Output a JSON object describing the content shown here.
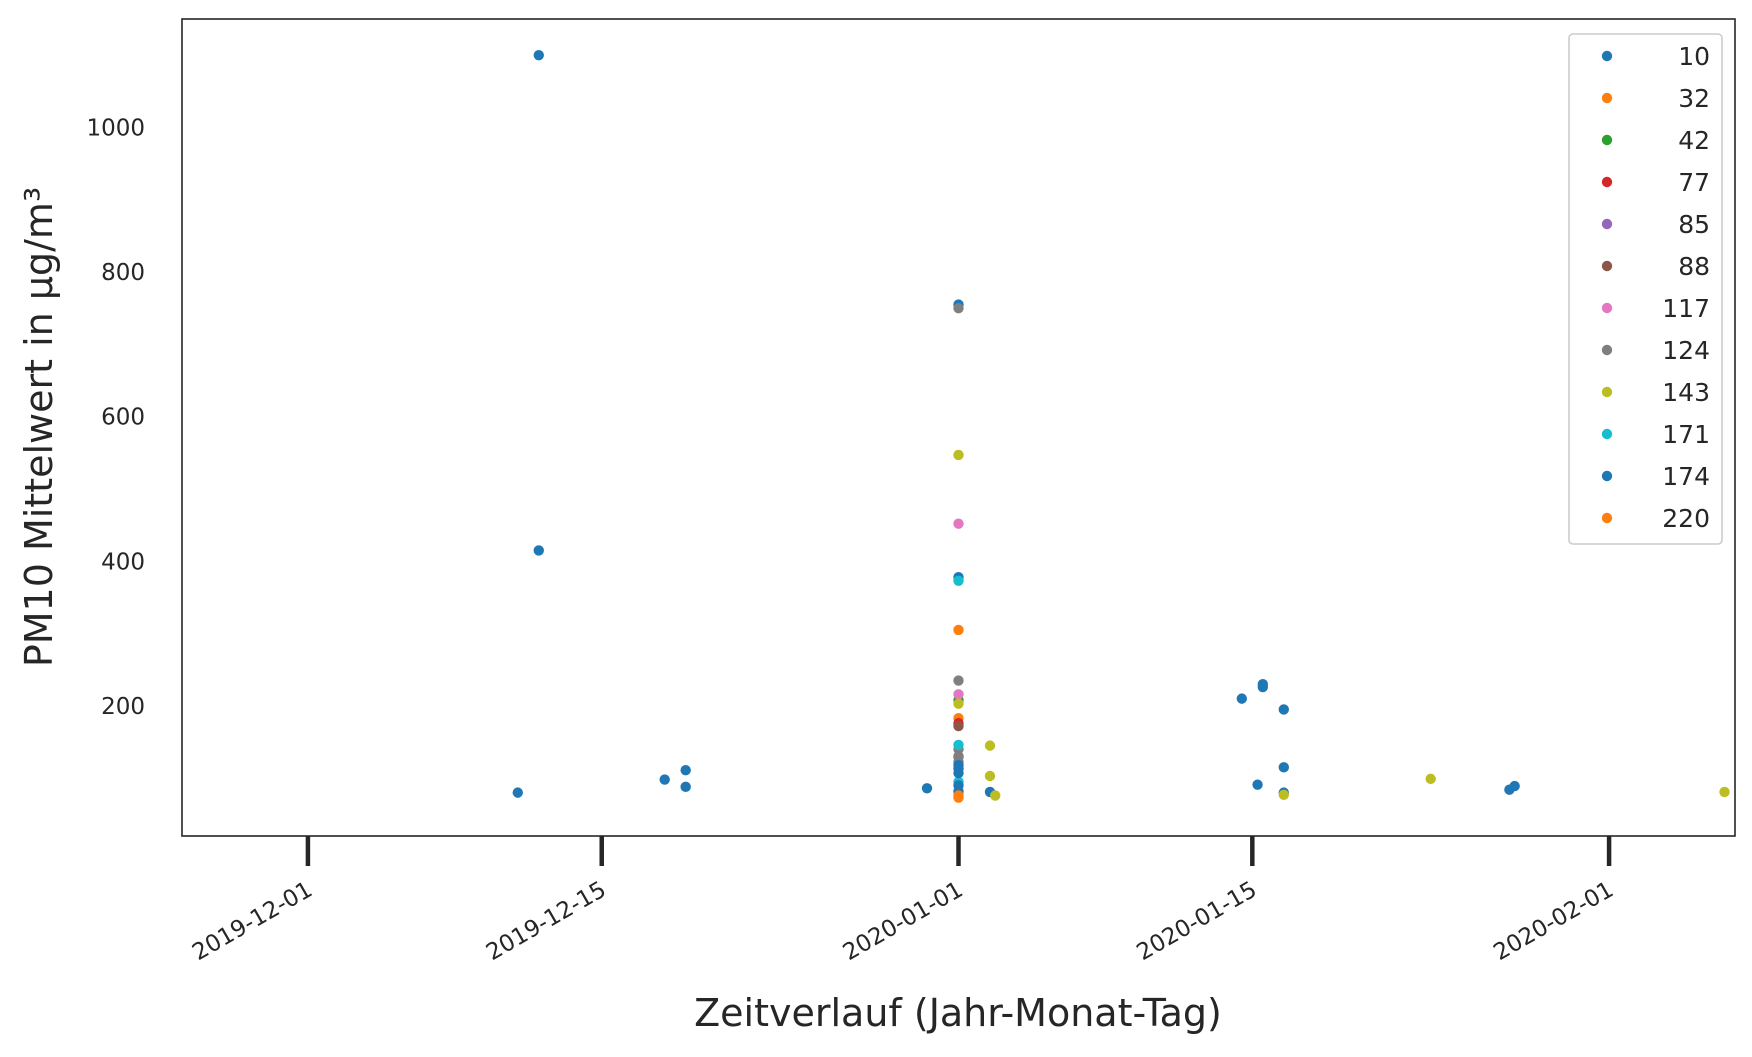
{
  "chart_data": {
    "type": "scatter",
    "xlabel": "Zeitverlauf (Jahr-Monat-Tag)",
    "ylabel": "PM10 Mittelwert in µg/m³",
    "xlim": [
      "2019-11-25",
      "2020-02-07"
    ],
    "ylim": [
      20,
      1150
    ],
    "x_ticks": [
      "2019-12-01",
      "2019-12-15",
      "2020-01-01",
      "2020-01-15",
      "2020-02-01"
    ],
    "y_ticks": [
      200,
      400,
      600,
      800,
      1000
    ],
    "grid": false,
    "legend_position": "top-right",
    "series": [
      {
        "name": "10",
        "color": "#1f77b4",
        "points": [
          {
            "x": "2019-12-11T00:00",
            "y": 80
          },
          {
            "x": "2019-12-12T00:00",
            "y": 1100
          },
          {
            "x": "2019-12-12T00:00",
            "y": 415
          },
          {
            "x": "2019-12-18T00:00",
            "y": 98
          },
          {
            "x": "2019-12-19T00:00",
            "y": 111
          },
          {
            "x": "2019-12-19T00:00",
            "y": 88
          },
          {
            "x": "2019-12-30T12:00",
            "y": 86
          },
          {
            "x": "2020-01-01T00:00",
            "y": 755
          },
          {
            "x": "2020-01-01T00:00",
            "y": 378
          },
          {
            "x": "2020-01-02T12:00",
            "y": 81
          },
          {
            "x": "2020-01-14T12:00",
            "y": 210
          },
          {
            "x": "2020-01-15T06:00",
            "y": 91
          },
          {
            "x": "2020-01-15T12:00",
            "y": 230
          },
          {
            "x": "2020-01-15T12:00",
            "y": 226
          },
          {
            "x": "2020-01-16T12:00",
            "y": 195
          },
          {
            "x": "2020-01-16T12:00",
            "y": 115
          },
          {
            "x": "2020-01-16T12:00",
            "y": 80
          },
          {
            "x": "2020-01-27T06:00",
            "y": 84
          },
          {
            "x": "2020-01-27T12:00",
            "y": 89
          }
        ]
      },
      {
        "name": "32",
        "color": "#ff7f0e",
        "points": [
          {
            "x": "2020-01-01T00:00",
            "y": 305
          },
          {
            "x": "2020-01-01T00:00",
            "y": 183
          }
        ]
      },
      {
        "name": "42",
        "color": "#2ca02c",
        "points": [
          {
            "x": "2020-01-01T00:00",
            "y": 208
          }
        ]
      },
      {
        "name": "77",
        "color": "#d62728",
        "points": [
          {
            "x": "2020-01-01T00:00",
            "y": 176
          }
        ]
      },
      {
        "name": "85",
        "color": "#9467bd",
        "points": [
          {
            "x": "2020-01-01T00:00",
            "y": 122
          }
        ]
      },
      {
        "name": "88",
        "color": "#8c564b",
        "points": [
          {
            "x": "2020-01-01T00:00",
            "y": 172
          },
          {
            "x": "2020-01-01T00:00",
            "y": 130
          }
        ]
      },
      {
        "name": "117",
        "color": "#e377c2",
        "points": [
          {
            "x": "2020-01-01T00:00",
            "y": 452
          },
          {
            "x": "2020-01-01T00:00",
            "y": 216
          }
        ]
      },
      {
        "name": "124",
        "color": "#7f7f7f",
        "points": [
          {
            "x": "2020-01-01T00:00",
            "y": 750
          },
          {
            "x": "2020-01-01T00:00",
            "y": 235
          },
          {
            "x": "2020-01-01T00:00",
            "y": 140
          },
          {
            "x": "2020-01-01T00:00",
            "y": 129
          }
        ]
      },
      {
        "name": "143",
        "color": "#bcbd22",
        "points": [
          {
            "x": "2020-01-01T00:00",
            "y": 547
          },
          {
            "x": "2020-01-01T00:00",
            "y": 203
          },
          {
            "x": "2020-01-01T00:00",
            "y": 80
          },
          {
            "x": "2020-01-02T12:00",
            "y": 145
          },
          {
            "x": "2020-01-02T12:00",
            "y": 103
          },
          {
            "x": "2020-01-02T18:00",
            "y": 76
          },
          {
            "x": "2020-01-16T12:00",
            "y": 77
          },
          {
            "x": "2020-01-23T12:00",
            "y": 99
          },
          {
            "x": "2020-02-06T12:00",
            "y": 81
          }
        ]
      },
      {
        "name": "171",
        "color": "#17becf",
        "points": [
          {
            "x": "2020-01-01T00:00",
            "y": 373
          },
          {
            "x": "2020-01-01T00:00",
            "y": 146
          },
          {
            "x": "2020-01-01T00:00",
            "y": 95
          }
        ]
      },
      {
        "name": "174",
        "color": "#1f77b4",
        "points": [
          {
            "x": "2020-01-01T00:00",
            "y": 118
          },
          {
            "x": "2020-01-01T00:00",
            "y": 113
          },
          {
            "x": "2020-01-01T00:00",
            "y": 107
          },
          {
            "x": "2020-01-01T00:00",
            "y": 90
          },
          {
            "x": "2020-01-01T00:00",
            "y": 82
          }
        ]
      },
      {
        "name": "220",
        "color": "#ff7f0e",
        "points": [
          {
            "x": "2020-01-01T00:00",
            "y": 76
          },
          {
            "x": "2020-01-01T00:00",
            "y": 73
          }
        ]
      }
    ]
  }
}
